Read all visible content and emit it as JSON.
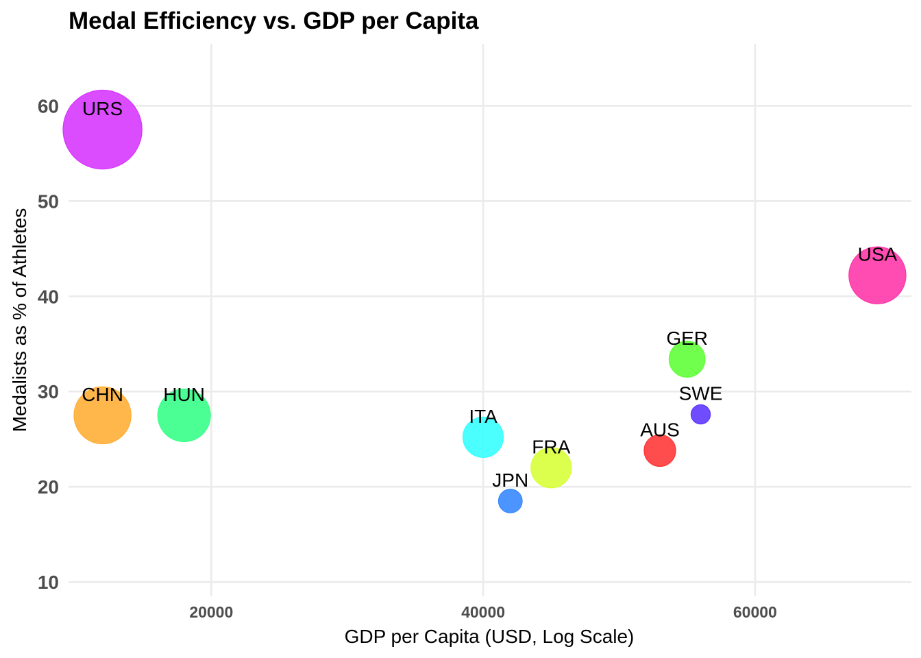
{
  "chart_data": {
    "type": "scatter",
    "title": "Medal Efficiency vs. GDP per Capita",
    "xlabel": "GDP per Capita (USD, Log Scale)",
    "ylabel": "Medalists as % of Athletes",
    "xlim": [
      9500,
      71500
    ],
    "ylim": [
      8.5,
      66.5
    ],
    "x_ticks": [
      20000,
      40000,
      60000
    ],
    "x_tick_labels": [
      "20000",
      "40000",
      "60000"
    ],
    "y_ticks": [
      10,
      20,
      30,
      40,
      50,
      60
    ],
    "y_tick_labels": [
      "10",
      "20",
      "30",
      "40",
      "50",
      "60"
    ],
    "grid": true,
    "legend": "none",
    "points": [
      {
        "label": "URS",
        "x": 12000,
        "y": 57.5,
        "size": 9.0,
        "color": "#d633ff"
      },
      {
        "label": "USA",
        "x": 69000,
        "y": 42.2,
        "size": 6.5,
        "color": "#ff33a8"
      },
      {
        "label": "GER",
        "x": 55000,
        "y": 33.4,
        "size": 4.1,
        "color": "#5cff33"
      },
      {
        "label": "CHN",
        "x": 12000,
        "y": 27.5,
        "size": 6.5,
        "color": "#ffad33"
      },
      {
        "label": "HUN",
        "x": 18000,
        "y": 27.5,
        "size": 6.0,
        "color": "#33ff85"
      },
      {
        "label": "SWE",
        "x": 56000,
        "y": 27.6,
        "size": 2.2,
        "color": "#5c33ff"
      },
      {
        "label": "ITA",
        "x": 40000,
        "y": 25.2,
        "size": 4.6,
        "color": "#33ffff"
      },
      {
        "label": "AUS",
        "x": 53000,
        "y": 23.8,
        "size": 3.6,
        "color": "#ff3333"
      },
      {
        "label": "FRA",
        "x": 45000,
        "y": 22.0,
        "size": 4.6,
        "color": "#d6ff33"
      },
      {
        "label": "JPN",
        "x": 42000,
        "y": 18.5,
        "size": 2.7,
        "color": "#3385ff"
      }
    ]
  }
}
